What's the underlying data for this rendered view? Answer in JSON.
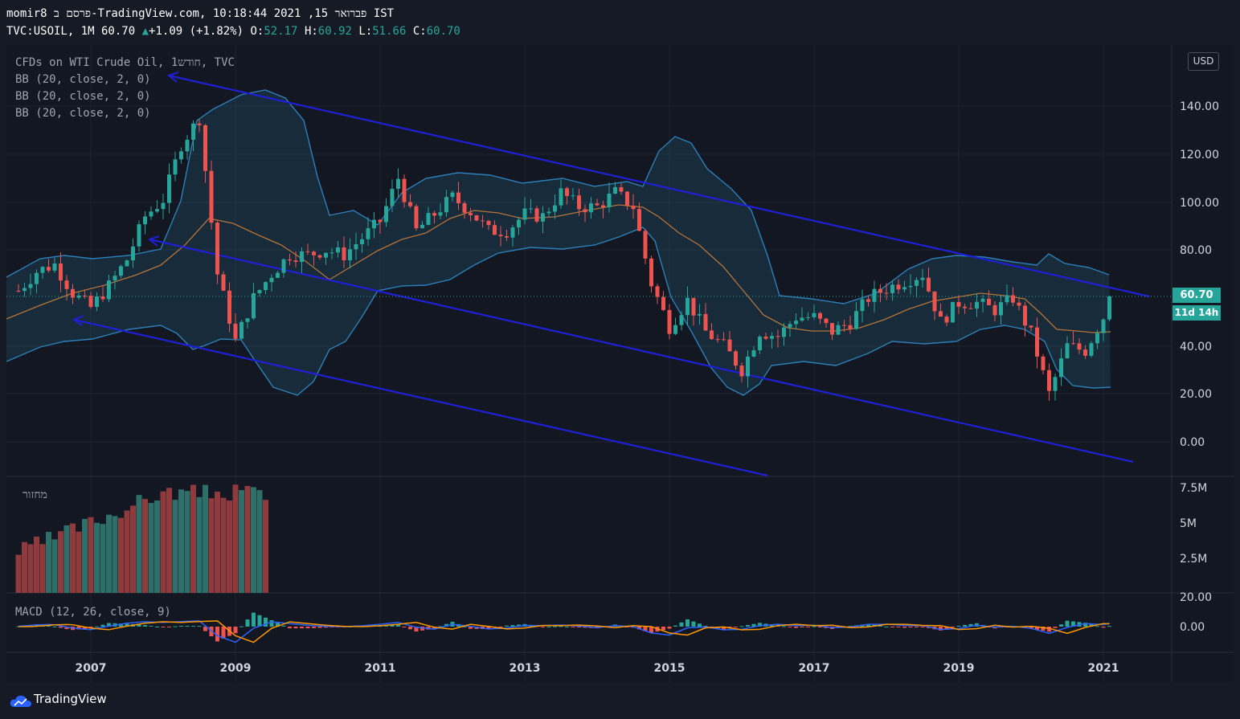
{
  "header": {
    "line1": "momir8 פרסם ב-TradingView.com, פברואר 15, 2021 10:18:44 IST",
    "symbol": "TVC:USOIL, 1M 60.70",
    "change_icon": "triangle-up-icon",
    "change": "+1.09 (+1.82%)",
    "o_label": "O:",
    "o": "52.17",
    "h_label": "H:",
    "h": "60.92",
    "l_label": "L:",
    "l": "51.66",
    "c_label": "C:",
    "c": "60.70"
  },
  "legend": {
    "title": "CFDs on WTI Crude Oil, 1חודש, TVC",
    "bb1": "BB (20, close, 2, 0)",
    "bb2": "BB (20, close, 2, 0)",
    "bb3": "BB (20, close, 2, 0)",
    "volume": "מחזור",
    "macd": "MACD (12, 26, close, 9)"
  },
  "price_axis": {
    "currency": "USD",
    "last_price": "60.70",
    "countdown": "11d 14h"
  },
  "footer": {
    "brand": "TradingView",
    "logo_icon": "tradingview-cloud-icon"
  },
  "colors": {
    "up": "#26a69a",
    "down": "#ef5350",
    "band": "#2c7fb8",
    "basis": "#b5743a",
    "channel": "#1f1fd6",
    "background": "#131722"
  },
  "chart_data": [
    {
      "type": "candlestick",
      "title": "CFDs on WTI Crude Oil, 1חודש, TVC",
      "x_ticks": [
        "2007",
        "2009",
        "2011",
        "2013",
        "2015",
        "2017",
        "2019",
        "2021"
      ],
      "y_ticks": [
        "0.00",
        "20.00",
        "40.00",
        "60.00",
        "80.00",
        "100.00",
        "120.00",
        "140.00"
      ],
      "ylim": [
        -15,
        160
      ],
      "last_price": 60.7,
      "grid": true,
      "closes": [
        {
          "t": 2006.0,
          "v": 63
        },
        {
          "t": 2006.25,
          "v": 71
        },
        {
          "t": 2006.5,
          "v": 74
        },
        {
          "t": 2006.75,
          "v": 62
        },
        {
          "t": 2007.0,
          "v": 56
        },
        {
          "t": 2007.25,
          "v": 65
        },
        {
          "t": 2007.5,
          "v": 76
        },
        {
          "t": 2007.75,
          "v": 94
        },
        {
          "t": 2008.0,
          "v": 101
        },
        {
          "t": 2008.25,
          "v": 124
        },
        {
          "t": 2008.5,
          "v": 135
        },
        {
          "t": 2008.75,
          "v": 70
        },
        {
          "t": 2009.0,
          "v": 42
        },
        {
          "t": 2009.25,
          "v": 60
        },
        {
          "t": 2009.5,
          "v": 70
        },
        {
          "t": 2009.75,
          "v": 78
        },
        {
          "t": 2010.0,
          "v": 78
        },
        {
          "t": 2010.25,
          "v": 80
        },
        {
          "t": 2010.5,
          "v": 78
        },
        {
          "t": 2010.75,
          "v": 85
        },
        {
          "t": 2011.0,
          "v": 92
        },
        {
          "t": 2011.25,
          "v": 110
        },
        {
          "t": 2011.5,
          "v": 88
        },
        {
          "t": 2011.75,
          "v": 95
        },
        {
          "t": 2012.0,
          "v": 102
        },
        {
          "t": 2012.25,
          "v": 96
        },
        {
          "t": 2012.5,
          "v": 88
        },
        {
          "t": 2012.75,
          "v": 88
        },
        {
          "t": 2013.0,
          "v": 95
        },
        {
          "t": 2013.25,
          "v": 94
        },
        {
          "t": 2013.5,
          "v": 104
        },
        {
          "t": 2013.75,
          "v": 98
        },
        {
          "t": 2014.0,
          "v": 98
        },
        {
          "t": 2014.25,
          "v": 104
        },
        {
          "t": 2014.5,
          "v": 98
        },
        {
          "t": 2014.75,
          "v": 66
        },
        {
          "t": 2015.0,
          "v": 48
        },
        {
          "t": 2015.25,
          "v": 59
        },
        {
          "t": 2015.5,
          "v": 46
        },
        {
          "t": 2015.75,
          "v": 40
        },
        {
          "t": 2016.0,
          "v": 30
        },
        {
          "t": 2016.25,
          "v": 46
        },
        {
          "t": 2016.5,
          "v": 44
        },
        {
          "t": 2016.75,
          "v": 52
        },
        {
          "t": 2017.0,
          "v": 52
        },
        {
          "t": 2017.25,
          "v": 46
        },
        {
          "t": 2017.5,
          "v": 50
        },
        {
          "t": 2017.75,
          "v": 60
        },
        {
          "t": 2018.0,
          "v": 64
        },
        {
          "t": 2018.25,
          "v": 67
        },
        {
          "t": 2018.5,
          "v": 70
        },
        {
          "t": 2018.75,
          "v": 50
        },
        {
          "t": 2019.0,
          "v": 58
        },
        {
          "t": 2019.25,
          "v": 58
        },
        {
          "t": 2019.5,
          "v": 55
        },
        {
          "t": 2019.75,
          "v": 60
        },
        {
          "t": 2020.0,
          "v": 45
        },
        {
          "t": 2020.25,
          "v": 20
        },
        {
          "t": 2020.5,
          "v": 40
        },
        {
          "t": 2020.75,
          "v": 38
        },
        {
          "t": 2021.0,
          "v": 52
        },
        {
          "t": 2021.1,
          "v": 60.7
        }
      ]
    },
    {
      "type": "bar",
      "title": "מחזור",
      "y_ticks": [
        "2.5M",
        "5M",
        "7.5M"
      ],
      "ylim": [
        0,
        8000000
      ],
      "note": "monthly volume bars, 2006 through 2009"
    },
    {
      "type": "line",
      "title": "MACD (12, 26, close, 9)",
      "y_ticks": [
        "0.00",
        "20.00"
      ]
    }
  ]
}
